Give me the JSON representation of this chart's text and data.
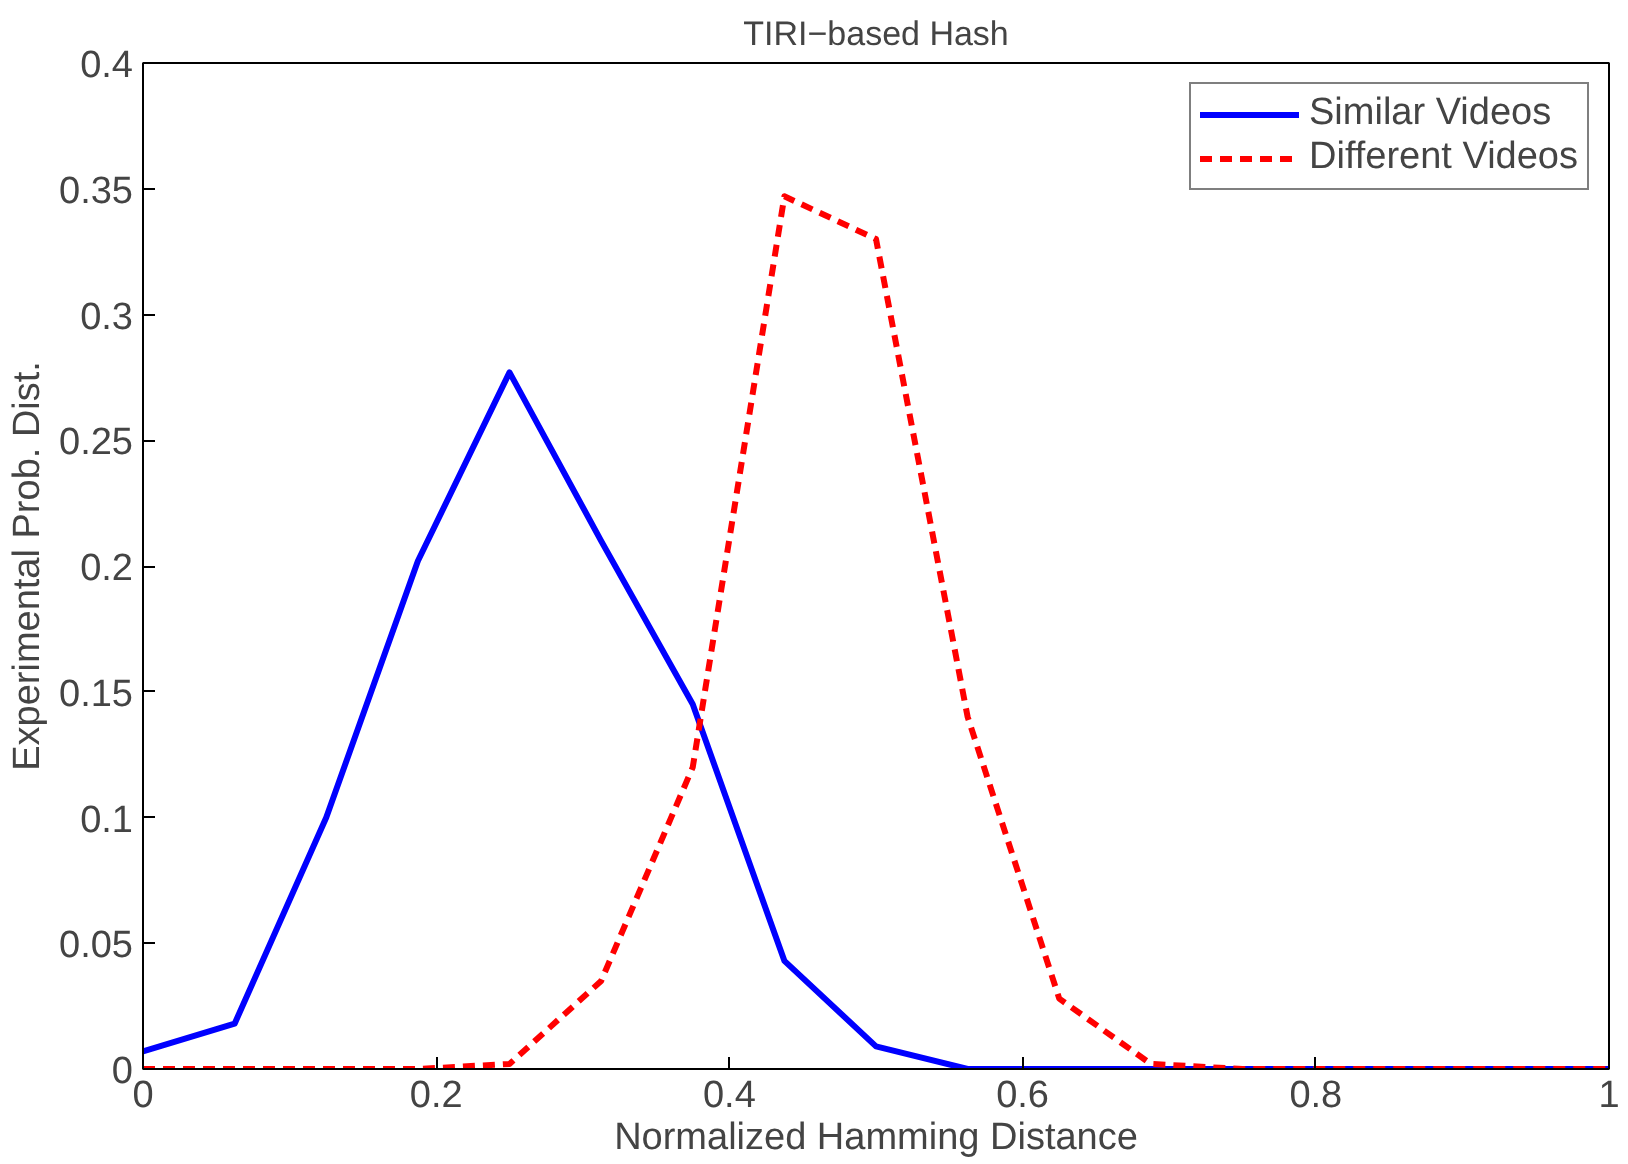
{
  "chart_data": {
    "type": "line",
    "title": "TIRI−based Hash",
    "xlabel": "Normalized Hamming Distance",
    "ylabel": "Experimental Prob. Dist.",
    "x": [
      0,
      0.0625,
      0.125,
      0.1875,
      0.25,
      0.3125,
      0.375,
      0.4375,
      0.5,
      0.5625,
      0.625,
      0.6875,
      0.75,
      0.8125,
      0.875,
      0.9375,
      1
    ],
    "series": [
      {
        "name": "Similar Videos",
        "color": "#0000ff",
        "line_style": "solid",
        "values": [
          0.007,
          0.018,
          0.1,
          0.202,
          0.277,
          0.21,
          0.145,
          0.043,
          0.009,
          0,
          0,
          0,
          0,
          0,
          0,
          0,
          0
        ]
      },
      {
        "name": "Different Videos",
        "color": "#ff0000",
        "line_style": "dashed",
        "values": [
          0,
          0,
          0,
          0,
          0.002,
          0.035,
          0.12,
          0.347,
          0.33,
          0.14,
          0.028,
          0.002,
          0,
          0,
          0,
          0,
          0
        ]
      }
    ],
    "xlim": [
      0,
      1
    ],
    "ylim": [
      0,
      0.4
    ],
    "xticks": [
      0,
      0.2,
      0.4,
      0.6,
      0.8,
      1
    ],
    "yticks": [
      0,
      0.05,
      0.1,
      0.15,
      0.2,
      0.25,
      0.3,
      0.35,
      0.4
    ],
    "grid": false,
    "legend": "top right",
    "marker": "none"
  }
}
